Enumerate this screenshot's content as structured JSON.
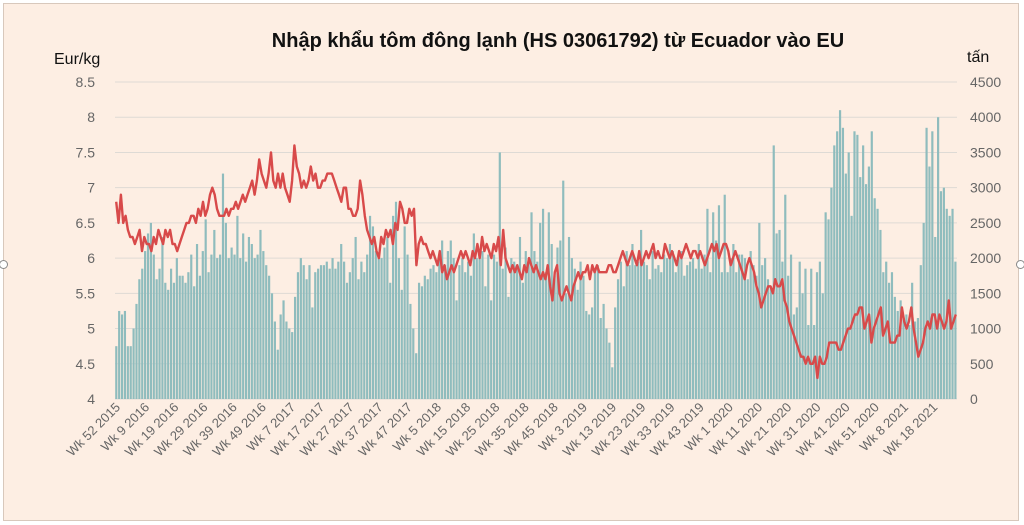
{
  "chart_data": {
    "type": "bar+line",
    "title": "Nhập khẩu tôm đông lạnh (HS 03061792) từ Ecuador vào EU",
    "ylabel_left": "Eur/kg",
    "ylabel_right": "tấn",
    "ylim_left": [
      4,
      8.5
    ],
    "ylim_right": [
      0,
      4500
    ],
    "yticks_left": [
      "4",
      "4.5",
      "5",
      "5.5",
      "6",
      "6.5",
      "7",
      "7.5",
      "8",
      "8.5"
    ],
    "yticks_right": [
      "0",
      "500",
      "1000",
      "1500",
      "2000",
      "2500",
      "3000",
      "3500",
      "4000",
      "4500"
    ],
    "grid": true,
    "x_labels": [
      "Wk 52 2015",
      "Wk 9 2016",
      "Wk 19 2016",
      "Wk 29 2016",
      "Wk 39 2016",
      "Wk 49 2016",
      "Wk 7 2017",
      "Wk 17 2017",
      "Wk 27 2017",
      "Wk 37 2017",
      "Wk 47 2017",
      "Wk 5 2018",
      "Wk 15 2018",
      "Wk 25 2018",
      "Wk 35 2018",
      "Wk 45 2018",
      "Wk 3 2019",
      "Wk 13 2019",
      "Wk 23 2019",
      "Wk 33 2019",
      "Wk 43 2019",
      "Wk 1 2020",
      "Wk 11 2020",
      "Wk 21 2020",
      "Wk 31 2020",
      "Wk 41 2020",
      "Wk 51 2020",
      "Wk 8 2021",
      "Wk 18 2021"
    ],
    "series": [
      {
        "kind": "bar",
        "axis": "right",
        "color": "#8fbcbd",
        "values": [
          750,
          1250,
          1200,
          1250,
          750,
          750,
          1000,
          1350,
          1700,
          1850,
          2100,
          2350,
          2500,
          2050,
          1700,
          1850,
          2300,
          1650,
          1550,
          1850,
          1650,
          2000,
          1750,
          1750,
          1650,
          1800,
          2050,
          1600,
          2200,
          1750,
          2100,
          2550,
          1800,
          2050,
          2400,
          2000,
          2050,
          3200,
          2500,
          2000,
          2150,
          2050,
          2600,
          2000,
          2350,
          1950,
          2300,
          2200,
          2000,
          2050,
          2400,
          2100,
          1900,
          1750,
          1500,
          1100,
          700,
          1200,
          1400,
          1100,
          1000,
          950,
          1450,
          1800,
          2000,
          1900,
          1700,
          1900,
          1300,
          1800,
          1850,
          1900,
          1900,
          1950,
          1850,
          2000,
          1850,
          1950,
          2200,
          1950,
          1650,
          1800,
          2000,
          2300,
          1700,
          1950,
          1800,
          2050,
          2600,
          2450,
          2100,
          2000,
          2000,
          2150,
          2300,
          1650,
          2600,
          2800,
          2000,
          1550,
          2450,
          2050,
          1350,
          1000,
          650,
          1650,
          1600,
          1750,
          1700,
          1850,
          1900,
          1800,
          2000,
          2250,
          1900,
          2100,
          2250,
          2000,
          1400,
          1900,
          2000,
          1800,
          1950,
          1750,
          2350,
          2000,
          2000,
          2100,
          1600,
          2050,
          1400,
          2050,
          1950,
          3500,
          1850,
          2150,
          1450,
          2000,
          1950,
          1900,
          2300,
          1650,
          2100,
          2000,
          2650,
          2100,
          1950,
          2500,
          2700,
          1800,
          2650,
          2200,
          1750,
          2150,
          2250,
          3100,
          1500,
          2300,
          2000,
          1850,
          1550,
          1950,
          1750,
          1250,
          1200,
          1300,
          1800,
          1900,
          1150,
          1350,
          1000,
          800,
          450,
          1300,
          1700,
          1950,
          1600,
          2100,
          1900,
          2200,
          1900,
          1950,
          2400,
          1950,
          1900,
          1700,
          2100,
          1850,
          1900,
          1800,
          2050,
          2000,
          2200,
          2100,
          1800,
          2050,
          2100,
          1750,
          1900,
          1950,
          2000,
          1850,
          2200,
          1850,
          2050,
          2700,
          1800,
          2650,
          2250,
          2750,
          1800,
          2900,
          1800,
          2000,
          2200,
          1800,
          2050,
          2050,
          2000,
          1700,
          2100,
          1900,
          1750,
          2500,
          1900,
          2000,
          1700,
          1600,
          3600,
          2350,
          2400,
          1950,
          2900,
          1750,
          2050,
          1200,
          1300,
          1950,
          1500,
          1850,
          1050,
          1850,
          1050,
          1800,
          1950,
          1500,
          2650,
          2550,
          3000,
          3600,
          3800,
          4100,
          3850,
          3200,
          3500,
          2600,
          3800,
          3750,
          3150,
          3600,
          3050,
          3300,
          3800,
          2850,
          2700,
          2400,
          1800,
          1950,
          1650,
          1800,
          1450,
          1250,
          1400,
          1150,
          1200,
          1050,
          1650,
          1100,
          1150,
          1900,
          2500,
          3850,
          3300,
          3800,
          2300,
          4000,
          2950,
          3000,
          2700,
          2600,
          2700,
          1950
        ]
      },
      {
        "kind": "line",
        "axis": "left",
        "color": "#d84a4a",
        "values": [
          6.8,
          6.5,
          6.9,
          6.5,
          6.6,
          6.4,
          6.3,
          6.3,
          6.2,
          6.3,
          6.4,
          6.1,
          6.3,
          6.2,
          6.2,
          6.1,
          6.3,
          6.2,
          6.4,
          6.3,
          6.2,
          6.4,
          6.3,
          6.4,
          6.2,
          6.2,
          6.1,
          6.2,
          6.3,
          6.4,
          6.5,
          6.5,
          6.6,
          6.6,
          6.5,
          6.7,
          6.6,
          6.8,
          6.6,
          6.7,
          6.9,
          7.0,
          6.9,
          6.7,
          6.6,
          6.6,
          6.6,
          6.7,
          6.6,
          6.7,
          6.7,
          6.8,
          6.7,
          6.8,
          6.9,
          6.8,
          6.9,
          7.0,
          7.1,
          6.9,
          7.1,
          7.4,
          7.2,
          7.1,
          7.0,
          7.2,
          7.5,
          7.1,
          7.0,
          7.2,
          7.0,
          7.2,
          7.0,
          6.9,
          6.8,
          7.1,
          7.6,
          7.3,
          7.2,
          7.0,
          7.1,
          7.0,
          7.1,
          7.3,
          7.1,
          7.2,
          7.0,
          7.0,
          7.1,
          7.1,
          7.2,
          7.2,
          7.2,
          7.1,
          7.0,
          6.9,
          6.8,
          7.0,
          7.0,
          6.7,
          6.7,
          6.6,
          6.6,
          6.7,
          7.1,
          6.9,
          6.6,
          6.4,
          6.3,
          6.2,
          6.3,
          6.1,
          6.0,
          6.3,
          6.2,
          6.4,
          6.3,
          6.4,
          6.2,
          6.5,
          6.4,
          6.8,
          6.7,
          6.5,
          6.5,
          6.7,
          6.6,
          6.7,
          5.9,
          6.2,
          6.3,
          6.2,
          6.2,
          6.1,
          6.0,
          6.1,
          6.0,
          5.9,
          6.1,
          5.8,
          5.9,
          5.7,
          5.8,
          5.9,
          5.8,
          5.9,
          6.0,
          6.1,
          6.0,
          6.1,
          6.0,
          5.9,
          6.1,
          6.0,
          6.2,
          6.0,
          6.3,
          6.1,
          6.2,
          6.1,
          6.0,
          6.2,
          6.1,
          6.3,
          5.9,
          6.4,
          6.0,
          5.9,
          5.8,
          5.9,
          5.8,
          5.9,
          5.8,
          5.7,
          5.9,
          5.8,
          6.0,
          5.9,
          5.8,
          5.9,
          5.8,
          5.7,
          5.8,
          5.7,
          5.9,
          5.6,
          5.4,
          5.8,
          5.9,
          5.5,
          5.4,
          5.5,
          5.6,
          5.5,
          5.4,
          5.6,
          5.7,
          5.8,
          5.7,
          5.8,
          5.8,
          5.9,
          5.7,
          5.9,
          5.8,
          5.9,
          5.8,
          5.8,
          5.8,
          5.8,
          5.9,
          5.9,
          5.8,
          5.8,
          5.9,
          6.0,
          6.1,
          6.0,
          5.9,
          6.0,
          6.1,
          6.0,
          5.9,
          6.1,
          5.9,
          6.0,
          6.1,
          6.0,
          6.1,
          6.2,
          6.0,
          6.1,
          6.0,
          6.0,
          6.2,
          6.1,
          6.0,
          6.1,
          6.0,
          5.9,
          6.1,
          6.0,
          6.1,
          6.2,
          6.1,
          6.0,
          6.1,
          6.1,
          6.0,
          6.1,
          6.0,
          5.9,
          6.0,
          6.1,
          6.2,
          6.1,
          6.2,
          6.0,
          6.1,
          6.2,
          6.2,
          6.1,
          5.9,
          6.0,
          6.1,
          6.0,
          5.9,
          5.8,
          5.7,
          5.9,
          6.0,
          5.9,
          5.8,
          5.6,
          5.5,
          5.3,
          5.4,
          5.5,
          5.6,
          5.6,
          5.5,
          5.7,
          5.6,
          5.6,
          5.7,
          5.4,
          5.3,
          5.1,
          5.0,
          4.9,
          4.8,
          4.7,
          4.6,
          4.6,
          4.5,
          4.6,
          4.5,
          4.5,
          4.6,
          4.3,
          4.6,
          4.5,
          4.5,
          4.6,
          4.8,
          4.8,
          4.8,
          4.8,
          4.7,
          4.7,
          4.8,
          4.9,
          5.0,
          5.0,
          5.1,
          5.2,
          5.2,
          5.3,
          5.3,
          5.0,
          5.1,
          5.2,
          4.8,
          5.0,
          5.1,
          5.2,
          5.3,
          4.9,
          5.0,
          5.1,
          4.8,
          4.8,
          4.8,
          4.9,
          4.9,
          5.3,
          5.1,
          5.0,
          5.1,
          5.3,
          5.0,
          4.8,
          4.6,
          4.7,
          4.8,
          5.0,
          5.1,
          5.0,
          5.2,
          5.2,
          5.0,
          5.2,
          5.1,
          5.0,
          5.1,
          5.4,
          5.0,
          5.1,
          5.2
        ]
      }
    ]
  }
}
